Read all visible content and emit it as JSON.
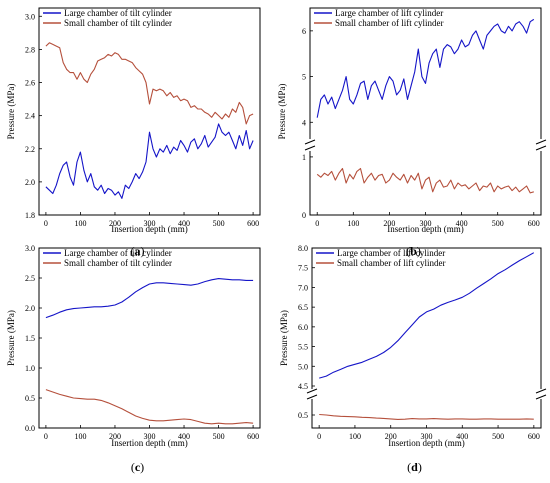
{
  "panels": [
    {
      "id": "a",
      "label": "a",
      "chart_data": {
        "type": "line",
        "xlabel": "Insertion depth (mm)",
        "ylabel": "Pressure (MPa)",
        "xlim": [
          -20,
          620
        ],
        "ylim": [
          1.8,
          3.05
        ],
        "xticks": [
          0,
          100,
          200,
          300,
          400,
          500,
          600
        ],
        "yticks": [
          1.8,
          2.0,
          2.2,
          2.4,
          2.6,
          2.8,
          3.0
        ],
        "legend": "top-left",
        "series": [
          {
            "name": "Large chamber of tilt cylinder",
            "color": "#1515c8",
            "x": [
              0,
              10,
              20,
              30,
              40,
              50,
              60,
              70,
              80,
              90,
              100,
              110,
              120,
              130,
              140,
              150,
              160,
              170,
              180,
              190,
              200,
              210,
              220,
              230,
              240,
              250,
              260,
              270,
              280,
              290,
              300,
              310,
              320,
              330,
              340,
              350,
              360,
              370,
              380,
              390,
              400,
              410,
              420,
              430,
              440,
              450,
              460,
              470,
              480,
              490,
              500,
              510,
              520,
              530,
              540,
              550,
              560,
              570,
              580,
              590,
              600
            ],
            "y": [
              1.97,
              1.95,
              1.93,
              1.98,
              2.05,
              2.1,
              2.12,
              2.03,
              1.98,
              2.12,
              2.18,
              2.07,
              2.0,
              2.05,
              1.97,
              1.95,
              1.98,
              1.93,
              1.96,
              1.95,
              1.92,
              1.94,
              1.9,
              1.98,
              1.96,
              2.0,
              2.05,
              2.02,
              2.06,
              2.12,
              2.3,
              2.2,
              2.15,
              2.2,
              2.18,
              2.22,
              2.17,
              2.21,
              2.19,
              2.25,
              2.22,
              2.18,
              2.24,
              2.26,
              2.2,
              2.23,
              2.28,
              2.21,
              2.24,
              2.27,
              2.35,
              2.3,
              2.28,
              2.3,
              2.25,
              2.2,
              2.28,
              2.22,
              2.31,
              2.2,
              2.25
            ]
          },
          {
            "name": "Small chamber of tilt cylinder",
            "color": "#b5503c",
            "x": [
              0,
              10,
              20,
              30,
              40,
              50,
              60,
              70,
              80,
              90,
              100,
              110,
              120,
              130,
              140,
              150,
              160,
              170,
              180,
              190,
              200,
              210,
              220,
              230,
              240,
              250,
              260,
              270,
              280,
              290,
              300,
              310,
              320,
              330,
              340,
              350,
              360,
              370,
              380,
              390,
              400,
              410,
              420,
              430,
              440,
              450,
              460,
              470,
              480,
              490,
              500,
              510,
              520,
              530,
              540,
              550,
              560,
              570,
              580,
              590,
              600
            ],
            "y": [
              2.82,
              2.84,
              2.83,
              2.82,
              2.81,
              2.72,
              2.68,
              2.66,
              2.66,
              2.62,
              2.66,
              2.62,
              2.6,
              2.65,
              2.68,
              2.73,
              2.74,
              2.75,
              2.77,
              2.76,
              2.78,
              2.77,
              2.74,
              2.74,
              2.73,
              2.72,
              2.69,
              2.67,
              2.65,
              2.6,
              2.47,
              2.56,
              2.55,
              2.56,
              2.55,
              2.52,
              2.54,
              2.51,
              2.52,
              2.49,
              2.5,
              2.49,
              2.45,
              2.46,
              2.44,
              2.44,
              2.42,
              2.41,
              2.39,
              2.42,
              2.4,
              2.38,
              2.41,
              2.39,
              2.44,
              2.42,
              2.48,
              2.45,
              2.35,
              2.4,
              2.41
            ]
          }
        ]
      }
    },
    {
      "id": "b",
      "label": "b",
      "chart_data": {
        "type": "line",
        "xlabel": "Insertion depth (mm)",
        "ylabel": "Pressure (MPa)",
        "xlim": [
          -20,
          620
        ],
        "ylim_upper": [
          3.7,
          6.5
        ],
        "ylim_lower": [
          0,
          1.05
        ],
        "xticks": [
          0,
          100,
          200,
          300,
          400,
          500,
          600
        ],
        "yticks_upper": [
          4,
          5,
          6
        ],
        "yticks_lower": [
          0,
          1
        ],
        "legend": "top-left",
        "series": [
          {
            "name": "Large chamber of lift cylinder",
            "color": "#1515c8",
            "x": [
              0,
              10,
              20,
              30,
              40,
              50,
              60,
              70,
              80,
              90,
              100,
              110,
              120,
              130,
              140,
              150,
              160,
              170,
              180,
              190,
              200,
              210,
              220,
              230,
              240,
              250,
              260,
              270,
              280,
              290,
              300,
              310,
              320,
              330,
              340,
              350,
              360,
              370,
              380,
              390,
              400,
              410,
              420,
              430,
              440,
              450,
              460,
              470,
              480,
              490,
              500,
              510,
              520,
              530,
              540,
              550,
              560,
              570,
              580,
              590,
              600
            ],
            "y": [
              4.1,
              4.5,
              4.6,
              4.4,
              4.55,
              4.3,
              4.5,
              4.7,
              5.0,
              4.5,
              4.4,
              4.6,
              4.85,
              4.9,
              4.5,
              4.8,
              4.9,
              4.7,
              4.5,
              4.8,
              5.0,
              4.9,
              4.6,
              4.7,
              4.95,
              4.5,
              4.8,
              5.1,
              5.6,
              5.0,
              4.85,
              5.3,
              5.5,
              5.6,
              5.2,
              5.6,
              5.7,
              5.65,
              5.5,
              5.6,
              5.8,
              5.65,
              5.7,
              5.9,
              6.0,
              5.8,
              5.6,
              5.9,
              6.0,
              6.1,
              6.15,
              6.0,
              5.95,
              6.1,
              6.0,
              6.15,
              6.2,
              6.1,
              5.95,
              6.2,
              6.25
            ]
          },
          {
            "name": "Small chamber of lift cylinder",
            "color": "#b5503c",
            "x": [
              0,
              10,
              20,
              30,
              40,
              50,
              60,
              70,
              80,
              90,
              100,
              110,
              120,
              130,
              140,
              150,
              160,
              170,
              180,
              190,
              200,
              210,
              220,
              230,
              240,
              250,
              260,
              270,
              280,
              290,
              300,
              310,
              320,
              330,
              340,
              350,
              360,
              370,
              380,
              390,
              400,
              410,
              420,
              430,
              440,
              450,
              460,
              470,
              480,
              490,
              500,
              510,
              520,
              530,
              540,
              550,
              560,
              570,
              580,
              590,
              600
            ],
            "y": [
              0.7,
              0.65,
              0.72,
              0.68,
              0.75,
              0.6,
              0.72,
              0.8,
              0.55,
              0.7,
              0.62,
              0.75,
              0.8,
              0.55,
              0.65,
              0.72,
              0.6,
              0.68,
              0.7,
              0.55,
              0.6,
              0.72,
              0.65,
              0.6,
              0.7,
              0.55,
              0.68,
              0.6,
              0.72,
              0.45,
              0.6,
              0.65,
              0.4,
              0.55,
              0.6,
              0.48,
              0.5,
              0.6,
              0.45,
              0.55,
              0.5,
              0.52,
              0.45,
              0.5,
              0.55,
              0.42,
              0.5,
              0.48,
              0.55,
              0.4,
              0.5,
              0.45,
              0.48,
              0.5,
              0.42,
              0.48,
              0.4,
              0.45,
              0.5,
              0.38,
              0.4
            ]
          }
        ]
      }
    },
    {
      "id": "c",
      "label": "c",
      "chart_data": {
        "type": "line",
        "xlabel": "Insertion depth (mm)",
        "ylabel": "Pressure (MPa)",
        "xlim": [
          -20,
          620
        ],
        "ylim": [
          0.0,
          3.0
        ],
        "xticks": [
          0,
          100,
          200,
          300,
          400,
          500,
          600
        ],
        "yticks": [
          0.0,
          0.5,
          1.0,
          1.5,
          2.0,
          2.5,
          3.0
        ],
        "legend": "top-left",
        "series": [
          {
            "name": "Large chamber of tilt cylinder",
            "color": "#1515c8",
            "x": [
              0,
              20,
              40,
              60,
              80,
              100,
              120,
              140,
              160,
              180,
              200,
              220,
              240,
              260,
              280,
              300,
              320,
              340,
              360,
              380,
              400,
              420,
              440,
              460,
              480,
              500,
              520,
              540,
              560,
              580,
              600
            ],
            "y": [
              1.84,
              1.88,
              1.93,
              1.97,
              1.99,
              2.0,
              2.01,
              2.02,
              2.02,
              2.03,
              2.05,
              2.1,
              2.18,
              2.27,
              2.34,
              2.4,
              2.42,
              2.42,
              2.41,
              2.4,
              2.39,
              2.38,
              2.4,
              2.44,
              2.47,
              2.49,
              2.48,
              2.47,
              2.47,
              2.46,
              2.46
            ]
          },
          {
            "name": "Small chamber of tilt cylinder",
            "color": "#b5503c",
            "x": [
              0,
              20,
              40,
              60,
              80,
              100,
              120,
              140,
              160,
              180,
              200,
              220,
              240,
              260,
              280,
              300,
              320,
              340,
              360,
              380,
              400,
              420,
              440,
              460,
              480,
              500,
              520,
              540,
              560,
              580,
              600
            ],
            "y": [
              0.64,
              0.6,
              0.56,
              0.53,
              0.5,
              0.49,
              0.48,
              0.48,
              0.46,
              0.42,
              0.37,
              0.32,
              0.26,
              0.2,
              0.16,
              0.13,
              0.12,
              0.12,
              0.13,
              0.14,
              0.15,
              0.14,
              0.11,
              0.08,
              0.07,
              0.08,
              0.07,
              0.07,
              0.08,
              0.09,
              0.08
            ]
          }
        ]
      }
    },
    {
      "id": "d",
      "label": "d",
      "chart_data": {
        "type": "line",
        "xlabel": "Insertion depth (mm)",
        "ylabel": "Pressure (MPa)",
        "xlim": [
          -20,
          620
        ],
        "ylim_upper": [
          4.5,
          8.0
        ],
        "ylim_lower": [
          0,
          1.0
        ],
        "xticks": [
          0,
          100,
          200,
          300,
          400,
          500,
          600
        ],
        "yticks_upper": [
          4.5,
          5.0,
          5.5,
          6.0,
          6.5,
          7.0,
          7.5,
          8.0
        ],
        "yticks_lower": [
          0.5
        ],
        "legend": "top-left",
        "series": [
          {
            "name": "Large chamber of lift cylinder",
            "color": "#1515c8",
            "x": [
              0,
              20,
              40,
              60,
              80,
              100,
              120,
              140,
              160,
              180,
              200,
              220,
              240,
              260,
              280,
              300,
              320,
              340,
              360,
              380,
              400,
              420,
              440,
              460,
              480,
              500,
              520,
              540,
              560,
              580,
              600
            ],
            "y": [
              4.7,
              4.75,
              4.85,
              4.92,
              5.0,
              5.05,
              5.1,
              5.18,
              5.25,
              5.35,
              5.48,
              5.65,
              5.85,
              6.05,
              6.25,
              6.38,
              6.45,
              6.55,
              6.62,
              6.68,
              6.75,
              6.85,
              6.98,
              7.1,
              7.22,
              7.35,
              7.45,
              7.57,
              7.68,
              7.78,
              7.88
            ]
          },
          {
            "name": "Small chamber of lift cylinder",
            "color": "#b5503c",
            "x": [
              0,
              20,
              40,
              60,
              80,
              100,
              120,
              140,
              160,
              180,
              200,
              220,
              240,
              260,
              280,
              300,
              320,
              340,
              360,
              380,
              400,
              420,
              440,
              460,
              480,
              500,
              520,
              540,
              560,
              580,
              600
            ],
            "y": [
              0.52,
              0.5,
              0.47,
              0.45,
              0.44,
              0.43,
              0.41,
              0.4,
              0.38,
              0.37,
              0.35,
              0.33,
              0.34,
              0.36,
              0.35,
              0.35,
              0.36,
              0.35,
              0.34,
              0.35,
              0.35,
              0.34,
              0.34,
              0.35,
              0.35,
              0.34,
              0.34,
              0.34,
              0.34,
              0.35,
              0.34
            ]
          }
        ]
      }
    }
  ]
}
